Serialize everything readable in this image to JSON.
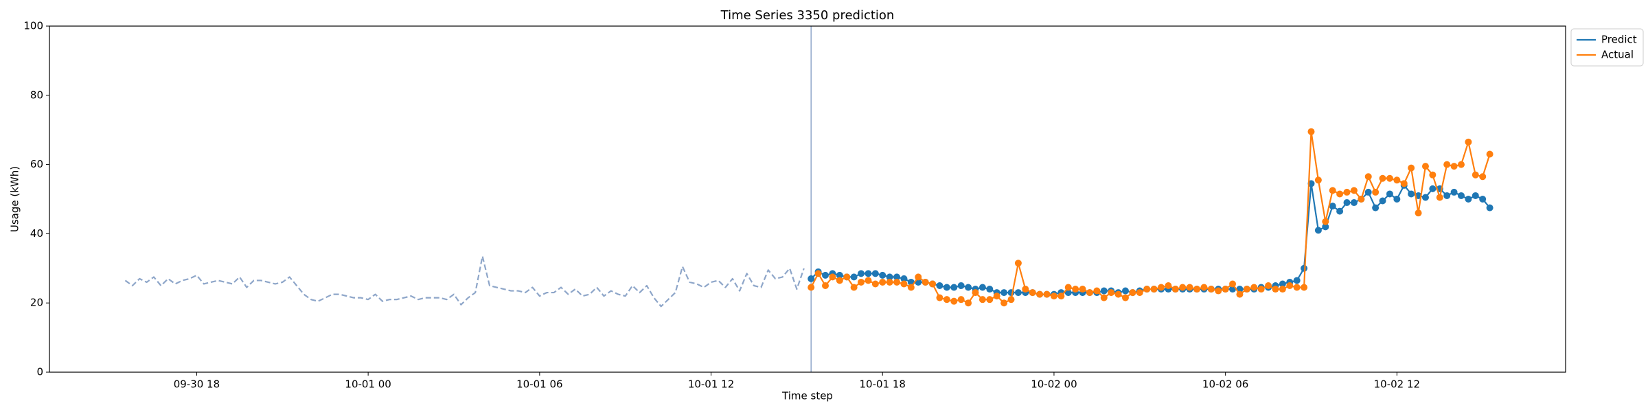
{
  "chart_data": {
    "type": "line",
    "title": "Time Series 3350 prediction",
    "xlabel": "Time step",
    "ylabel": "Usage (kWh)",
    "categories": [
      null,
      null,
      null,
      null,
      null,
      null,
      null,
      null,
      null,
      null,
      "09-30 18",
      null,
      null,
      null,
      null,
      null,
      null,
      null,
      null,
      null,
      null,
      null,
      null,
      null,
      null,
      null,
      null,
      null,
      null,
      null,
      null,
      null,
      null,
      null,
      "10-01 00",
      null,
      null,
      null,
      null,
      null,
      null,
      null,
      null,
      null,
      null,
      null,
      null,
      null,
      null,
      null,
      null,
      null,
      null,
      null,
      null,
      null,
      null,
      null,
      "10-01 06",
      null,
      null,
      null,
      null,
      null,
      null,
      null,
      null,
      null,
      null,
      null,
      null,
      null,
      null,
      null,
      null,
      null,
      null,
      null,
      null,
      null,
      null,
      null,
      "10-01 12",
      null,
      null,
      null,
      null,
      null,
      null,
      null,
      null,
      null,
      null,
      null,
      null,
      null,
      null,
      null,
      null,
      null,
      null,
      null,
      null,
      null,
      null,
      null,
      "10-01 18",
      null,
      null,
      null,
      null,
      null,
      null,
      null,
      null,
      null,
      null,
      null,
      null,
      null,
      null,
      null,
      null,
      null,
      null,
      null,
      null,
      null,
      null,
      null,
      "10-02 00",
      null,
      null,
      null,
      null,
      null,
      null,
      null,
      null,
      null,
      null,
      null,
      null,
      null,
      null,
      null,
      null,
      null,
      null,
      null,
      null,
      null,
      null,
      null,
      "10-02 06",
      null,
      null,
      null,
      null,
      null,
      null,
      null,
      null,
      null,
      null,
      null,
      null,
      null,
      null,
      null,
      null,
      null,
      null,
      null,
      null,
      null,
      null,
      null,
      "10-02 12",
      null,
      null,
      null,
      null,
      null,
      null,
      null,
      null,
      null,
      null,
      null,
      null,
      null
    ],
    "series": [
      {
        "color": "#8ea6c9",
        "style": "dashed",
        "markers": false,
        "values": [
          26.5,
          25,
          27,
          26,
          27.5,
          25,
          27,
          25.5,
          26.5,
          27,
          28,
          25.5,
          26,
          26.5,
          26,
          25.5,
          27.5,
          24.5,
          26.5,
          26.5,
          26,
          25.5,
          26,
          27.5,
          25,
          22.5,
          21,
          20.5,
          21.5,
          22.5,
          22.5,
          22,
          21.5,
          21.5,
          21,
          22.5,
          20.5,
          21,
          21,
          21.5,
          22,
          21,
          21.5,
          21.5,
          21.5,
          21,
          22.5,
          19.5,
          21.5,
          23,
          33.5,
          25,
          24.5,
          24,
          23.5,
          23.5,
          23,
          24.5,
          22,
          23,
          23,
          24.5,
          22.5,
          24,
          22,
          22.5,
          24.5,
          22,
          23.5,
          22.5,
          22,
          25,
          23,
          25,
          21.5,
          19,
          21,
          23,
          30.5,
          26,
          25.5,
          24.5,
          26,
          26.5,
          24.5,
          27,
          23.5,
          28.5,
          25,
          24.5,
          29.5,
          27,
          27.5,
          30,
          24,
          30,
          null,
          null,
          null,
          null,
          null,
          null,
          null,
          null,
          null,
          null,
          null,
          null,
          null,
          null,
          null,
          null,
          null,
          null,
          null,
          null,
          null,
          null,
          null,
          null,
          null,
          null,
          null,
          null,
          null,
          null,
          null,
          null,
          null,
          null,
          null,
          null,
          null,
          null,
          null,
          null,
          null,
          null,
          null,
          null,
          null,
          null,
          null,
          null,
          null,
          null,
          null,
          null,
          null,
          null,
          null,
          null,
          null,
          null,
          null,
          null,
          null,
          null,
          null,
          null,
          null,
          null,
          null,
          null,
          null,
          null,
          null,
          null,
          null,
          null,
          null,
          null,
          null,
          null,
          null,
          null,
          null,
          null,
          null,
          null,
          null,
          null,
          null,
          null,
          null,
          null,
          null,
          null,
          null,
          null,
          null,
          null
        ]
      },
      {
        "name": "Predict",
        "color": "#1f77b4",
        "style": "solid",
        "markers": true,
        "values": [
          null,
          null,
          null,
          null,
          null,
          null,
          null,
          null,
          null,
          null,
          null,
          null,
          null,
          null,
          null,
          null,
          null,
          null,
          null,
          null,
          null,
          null,
          null,
          null,
          null,
          null,
          null,
          null,
          null,
          null,
          null,
          null,
          null,
          null,
          null,
          null,
          null,
          null,
          null,
          null,
          null,
          null,
          null,
          null,
          null,
          null,
          null,
          null,
          null,
          null,
          null,
          null,
          null,
          null,
          null,
          null,
          null,
          null,
          null,
          null,
          null,
          null,
          null,
          null,
          null,
          null,
          null,
          null,
          null,
          null,
          null,
          null,
          null,
          null,
          null,
          null,
          null,
          null,
          null,
          null,
          null,
          null,
          null,
          null,
          null,
          null,
          null,
          null,
          null,
          null,
          null,
          null,
          null,
          null,
          null,
          null,
          27,
          29,
          28,
          28.5,
          28,
          27.5,
          27.5,
          28.5,
          28.5,
          28.5,
          28,
          27.5,
          27.5,
          27,
          26,
          26,
          26,
          25.5,
          25,
          24.5,
          24.5,
          25,
          24.5,
          24,
          24.5,
          24,
          23,
          23,
          23,
          23,
          23,
          23,
          22.5,
          22.5,
          22.5,
          23,
          23,
          23,
          23,
          23,
          23,
          23.5,
          23.5,
          23,
          23.5,
          23,
          23.5,
          24,
          24,
          24,
          24,
          24,
          24,
          24,
          24,
          24,
          24,
          24,
          24,
          24,
          24,
          24,
          24,
          24.5,
          24.5,
          25,
          25.5,
          26,
          26.5,
          30,
          54.5,
          41,
          42,
          48,
          46.5,
          49,
          49,
          50,
          52,
          47.5,
          49.5,
          51.5,
          50,
          54,
          51.5,
          51,
          50.5,
          53,
          53,
          51,
          52,
          51,
          50,
          51,
          50,
          47.5
        ]
      },
      {
        "name": "Actual",
        "color": "#ff7f0e",
        "style": "solid",
        "markers": true,
        "values": [
          null,
          null,
          null,
          null,
          null,
          null,
          null,
          null,
          null,
          null,
          null,
          null,
          null,
          null,
          null,
          null,
          null,
          null,
          null,
          null,
          null,
          null,
          null,
          null,
          null,
          null,
          null,
          null,
          null,
          null,
          null,
          null,
          null,
          null,
          null,
          null,
          null,
          null,
          null,
          null,
          null,
          null,
          null,
          null,
          null,
          null,
          null,
          null,
          null,
          null,
          null,
          null,
          null,
          null,
          null,
          null,
          null,
          null,
          null,
          null,
          null,
          null,
          null,
          null,
          null,
          null,
          null,
          null,
          null,
          null,
          null,
          null,
          null,
          null,
          null,
          null,
          null,
          null,
          null,
          null,
          null,
          null,
          null,
          null,
          null,
          null,
          null,
          null,
          null,
          null,
          null,
          null,
          null,
          null,
          null,
          null,
          24.5,
          28.5,
          25,
          27.5,
          26.5,
          27.5,
          24.5,
          26,
          26.5,
          25.5,
          26,
          26,
          26,
          25.5,
          24.5,
          27.5,
          26,
          25.5,
          21.5,
          21,
          20.5,
          21,
          20,
          23,
          21,
          21,
          22,
          20,
          21,
          31.5,
          24,
          23,
          22.5,
          22.5,
          22,
          22,
          24.5,
          24,
          24,
          23,
          23.5,
          21.5,
          23,
          22.5,
          21.5,
          23,
          23,
          24,
          24,
          24.5,
          25,
          24,
          24.5,
          24.5,
          24,
          24.5,
          24,
          23.5,
          24,
          25.5,
          22.5,
          24,
          24.5,
          24,
          25,
          24,
          24,
          25,
          24.5,
          24.5,
          69.5,
          55.5,
          43.5,
          52.5,
          51.5,
          52,
          52.5,
          50,
          56.5,
          52,
          56,
          56,
          55.5,
          54.5,
          59,
          46,
          59.5,
          57,
          50.5,
          60,
          59.5,
          60,
          66.5,
          57,
          56.5,
          63
        ]
      }
    ],
    "split_line_color": "#8ea6c9",
    "ylim": [
      0,
      100
    ],
    "yticks": [
      0,
      20,
      40,
      60,
      80,
      100
    ],
    "grid": false,
    "legend": "upper right outside"
  }
}
